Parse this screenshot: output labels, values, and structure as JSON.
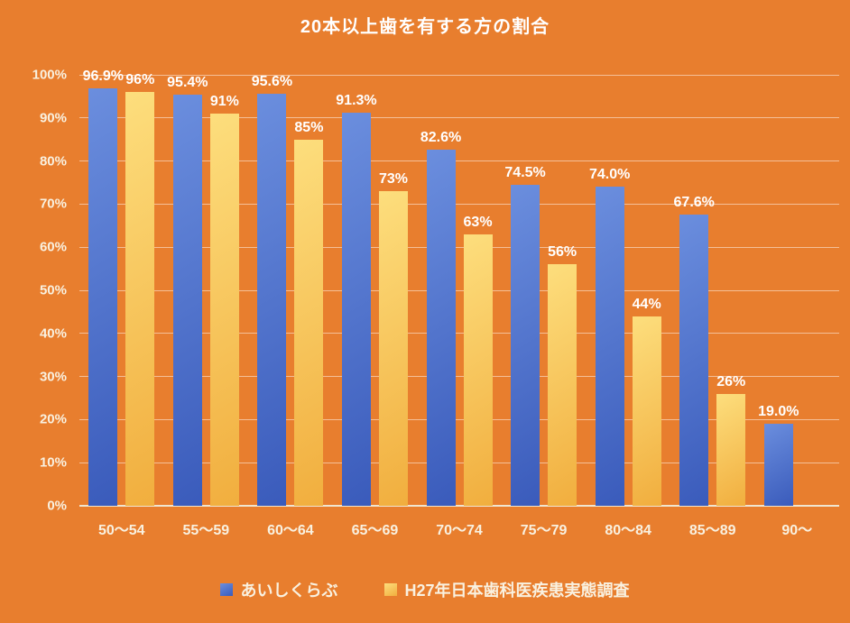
{
  "chart_data": {
    "type": "bar",
    "title": "20本以上歯を有する方の割合",
    "categories": [
      "50〜54",
      "55〜59",
      "60〜64",
      "65〜69",
      "70〜74",
      "75〜79",
      "80〜84",
      "85〜89",
      "90〜"
    ],
    "series": [
      {
        "name": "あいしくらぶ",
        "values": [
          96.9,
          95.4,
          95.6,
          91.3,
          82.6,
          74.5,
          74.0,
          67.6,
          19.0
        ],
        "labels": [
          "96.9%",
          "95.4%",
          "95.6%",
          "91.3%",
          "82.6%",
          "74.5%",
          "74.0%",
          "67.6%",
          "19.0%"
        ],
        "color_start": "#6B8EDE",
        "color_end": "#3A5BBB"
      },
      {
        "name": "H27年日本歯科医疾患実態調査",
        "values": [
          96,
          91,
          85,
          73,
          63,
          56,
          44,
          26,
          null
        ],
        "labels": [
          "96%",
          "91%",
          "85%",
          "73%",
          "63%",
          "56%",
          "44%",
          "26%",
          ""
        ],
        "color_start": "#FDDE7D",
        "color_end": "#F1AE3E"
      }
    ],
    "xlabel": "",
    "ylabel": "",
    "ylim": [
      0,
      100
    ],
    "ytick_step": 10,
    "ytick_labels": [
      "0%",
      "10%",
      "20%",
      "30%",
      "40%",
      "50%",
      "60%",
      "70%",
      "80%",
      "90%",
      "100%"
    ],
    "grid": true,
    "legend_position": "bottom"
  },
  "colors": {
    "background": "#E87E2E",
    "gridline": "rgba(255,255,255,0.50)",
    "axis_line": "#F0E5CF",
    "tick_label": "#F9F1E0",
    "data_label": "#FFFFFF",
    "title": "#FFFFFF"
  }
}
